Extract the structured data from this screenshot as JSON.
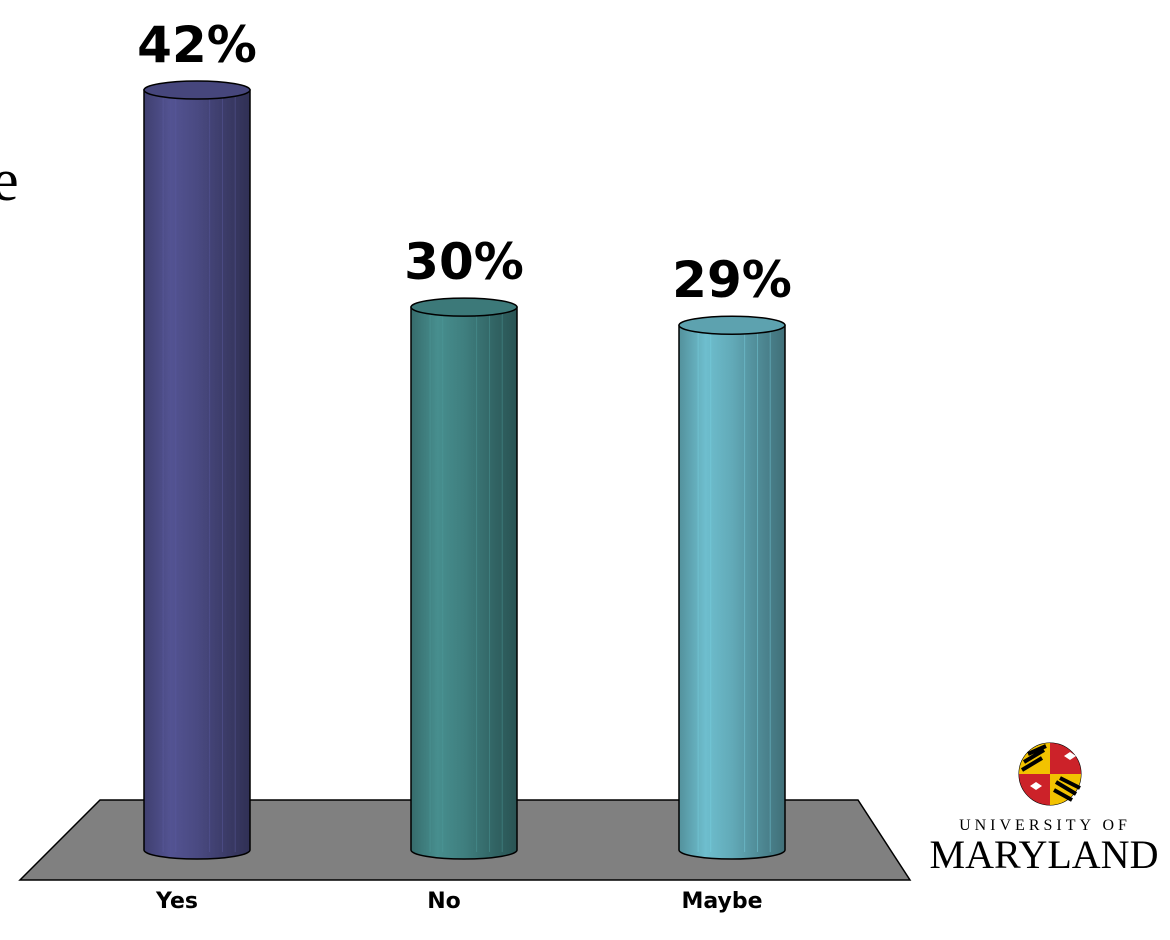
{
  "chart_data": {
    "type": "bar",
    "categories": [
      "Yes",
      "No",
      "Maybe"
    ],
    "values": [
      42,
      30,
      29
    ],
    "value_labels": [
      "42%",
      "30%",
      "29%"
    ],
    "unit": "%",
    "ylim": [
      0,
      42
    ],
    "grid": false,
    "legend": "none",
    "bar_style": "3d-cylinder",
    "colors": [
      "#4a4a82",
      "#3f7f7f",
      "#62aab8"
    ],
    "floor_color": "#808080"
  },
  "edge_text": "e",
  "logo": {
    "line1": "UNIVERSITY OF",
    "line2": "MARYLAND"
  }
}
